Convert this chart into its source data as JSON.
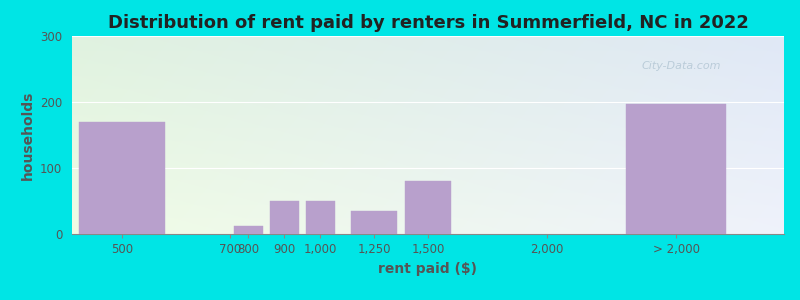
{
  "title": "Distribution of rent paid by renters in Summerfield, NC in 2022",
  "xlabel": "rent paid ($)",
  "ylabel": "households",
  "bar_color": "#b8a0cc",
  "ylim": [
    0,
    300
  ],
  "yticks": [
    0,
    100,
    200,
    300
  ],
  "bg_outer": "#00e5e5",
  "grid_color": "#ffffff",
  "title_fontsize": 13,
  "axis_label_fontsize": 10,
  "tick_label_fontsize": 8.5,
  "watermark": "City-Data.com",
  "bar_centers": [
    0.6,
    2.35,
    2.85,
    3.35,
    4.1,
    4.85,
    8.3
  ],
  "bar_heights": [
    170,
    12,
    50,
    50,
    35,
    80,
    197
  ],
  "bar_widths": [
    1.2,
    0.4,
    0.4,
    0.4,
    0.65,
    0.65,
    1.4
  ],
  "xtick_pos": [
    0.6,
    2.1,
    2.35,
    2.85,
    3.35,
    4.1,
    4.85,
    6.5,
    8.3
  ],
  "xtick_lab": [
    "500",
    "700",
    "800",
    "900",
    "1,000",
    "1,250",
    "1,500",
    "2,000",
    "> 2,000"
  ],
  "xlim": [
    -0.1,
    9.8
  ]
}
